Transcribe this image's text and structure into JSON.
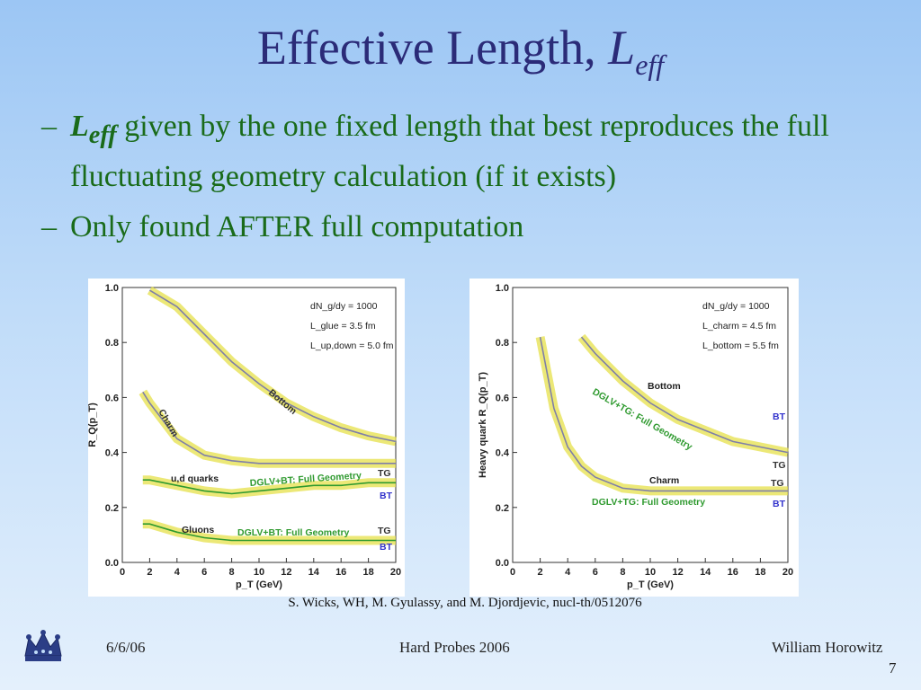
{
  "slide": {
    "title_main": "Effective Length, ",
    "title_symbol": "L",
    "title_subscript": "eff",
    "bullets": [
      {
        "dash": "–",
        "symbol": "L",
        "subscript": "eff",
        "text": " given by the one fixed length that best reproduces the full fluctuating geometry calculation (if it exists)"
      },
      {
        "dash": "–",
        "text": "Only found AFTER full computation"
      }
    ],
    "citation": "S. Wicks, WH, M. Gyulassy, and M. Djordjevic, nucl-th/0512076",
    "footer": {
      "date": "6/6/06",
      "event": "Hard Probes 2006",
      "author": "William Horowitz",
      "page": "7"
    },
    "logo_icon": "crown-icon"
  },
  "chart_data": [
    {
      "type": "line",
      "xlabel": "p_T (GeV)",
      "ylabel": "R_Q(p_T)",
      "xlim": [
        0,
        20
      ],
      "ylim": [
        0,
        1
      ],
      "xticks": [
        "0",
        "2",
        "4",
        "6",
        "8",
        "10",
        "12",
        "14",
        "16",
        "18",
        "20"
      ],
      "yticks": [
        "0.0",
        "0.2",
        "0.4",
        "0.6",
        "0.8",
        "1.0"
      ],
      "legend": [
        "dN_g/dy = 1000",
        "L_glue = 3.5 fm",
        "L_up,down = 5.0 fm"
      ],
      "annotations": [
        "Bottom",
        "Charm",
        "u,d quarks",
        "Gluons",
        "DGLV+BT: Full Geometry",
        "DGLV+BT: Full Geometry",
        "TG",
        "BT",
        "TG",
        "BT"
      ],
      "series": [
        {
          "name": "Bottom",
          "x": [
            2,
            4,
            6,
            8,
            10,
            12,
            14,
            16,
            18,
            20
          ],
          "y": [
            0.99,
            0.93,
            0.83,
            0.73,
            0.65,
            0.58,
            0.53,
            0.49,
            0.46,
            0.44
          ]
        },
        {
          "name": "Charm",
          "x": [
            1.5,
            2,
            4,
            6,
            8,
            10,
            12,
            14,
            16,
            18,
            20
          ],
          "y": [
            0.62,
            0.58,
            0.45,
            0.39,
            0.37,
            0.36,
            0.36,
            0.36,
            0.36,
            0.36,
            0.36
          ]
        },
        {
          "name": "u,d quarks",
          "x": [
            1.5,
            2,
            4,
            6,
            8,
            10,
            12,
            14,
            16,
            18,
            20
          ],
          "y": [
            0.3,
            0.3,
            0.28,
            0.26,
            0.25,
            0.26,
            0.27,
            0.28,
            0.28,
            0.29,
            0.29
          ]
        },
        {
          "name": "Gluons",
          "x": [
            1.5,
            2,
            4,
            6,
            8,
            10,
            12,
            14,
            16,
            18,
            20
          ],
          "y": [
            0.14,
            0.14,
            0.11,
            0.09,
            0.08,
            0.08,
            0.08,
            0.08,
            0.08,
            0.08,
            0.08
          ]
        }
      ]
    },
    {
      "type": "line",
      "xlabel": "p_T (GeV)",
      "ylabel": "Heavy quark R_Q(p_T)",
      "xlim": [
        0,
        20
      ],
      "ylim": [
        0,
        1
      ],
      "xticks": [
        "0",
        "2",
        "4",
        "6",
        "8",
        "10",
        "12",
        "14",
        "16",
        "18",
        "20"
      ],
      "yticks": [
        "0.0",
        "0.2",
        "0.4",
        "0.6",
        "0.8",
        "1.0"
      ],
      "legend": [
        "dN_g/dy = 1000",
        "L_charm = 4.5 fm",
        "L_bottom = 5.5 fm"
      ],
      "annotations": [
        "Bottom",
        "Charm",
        "DGLV+TG: Full Geometry",
        "DGLV+TG: Full Geometry",
        "BT",
        "TG",
        "TG",
        "BT"
      ],
      "series": [
        {
          "name": "Bottom",
          "x": [
            5,
            6,
            8,
            10,
            12,
            14,
            16,
            18,
            20
          ],
          "y": [
            0.82,
            0.76,
            0.66,
            0.58,
            0.52,
            0.48,
            0.44,
            0.42,
            0.4
          ]
        },
        {
          "name": "Charm",
          "x": [
            2,
            3,
            4,
            5,
            6,
            8,
            10,
            12,
            14,
            16,
            18,
            20
          ],
          "y": [
            0.82,
            0.56,
            0.42,
            0.35,
            0.31,
            0.27,
            0.26,
            0.26,
            0.26,
            0.26,
            0.26,
            0.26
          ]
        }
      ]
    }
  ]
}
